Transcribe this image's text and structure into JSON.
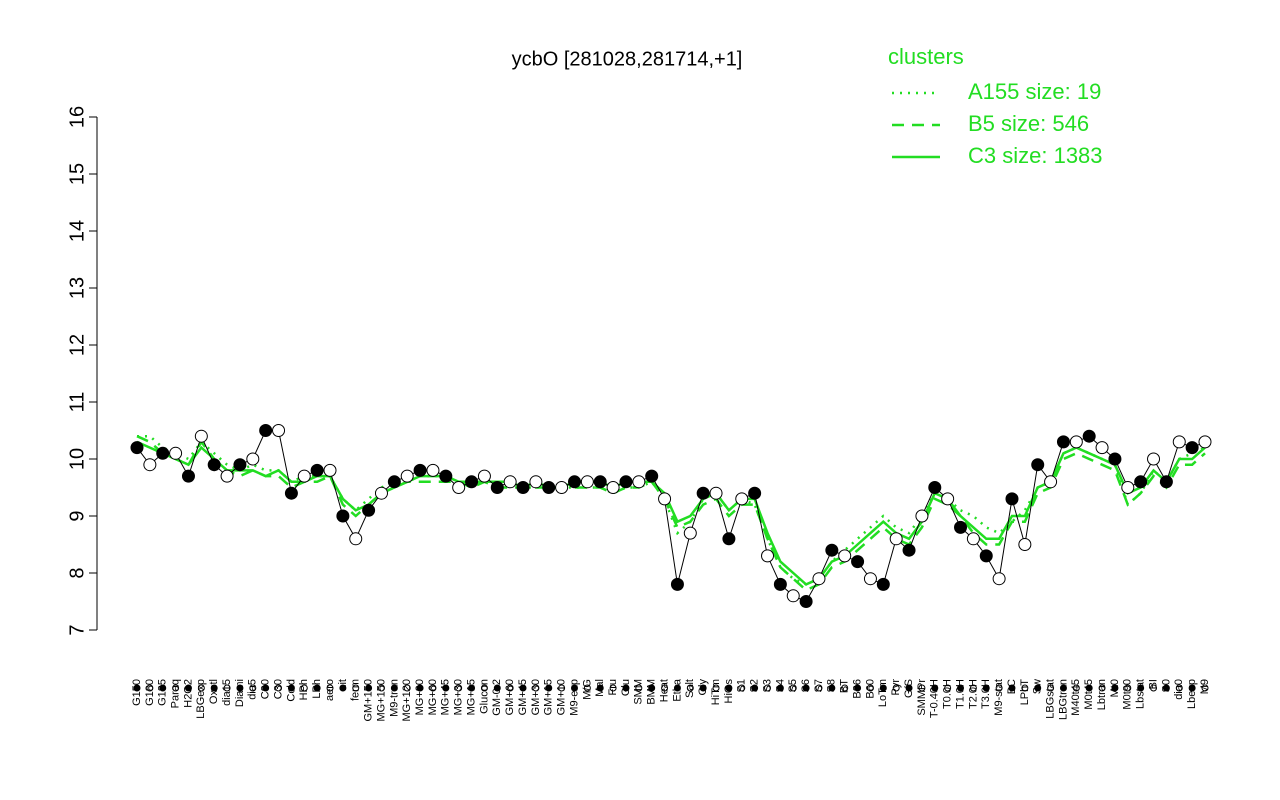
{
  "chart_data": {
    "type": "line",
    "title": "ycbO [281028,281714,+1]",
    "categories": [
      "G150",
      "G180",
      "G135",
      "Paraq",
      "H2O2",
      "LBGexp",
      "Oxctl",
      "dia15",
      "Diami",
      "dia5",
      "C90",
      "C30",
      "Cold",
      "HPh",
      "LPh",
      "aero",
      "nit",
      "ferm",
      "GM+150",
      "MG+150",
      "M9-tran",
      "MG+120",
      "MG+90",
      "MG+60",
      "MG+45",
      "MG+30",
      "MG+15",
      "Glucon",
      "GM-0.2",
      "GM+60",
      "GM+45",
      "GM+30",
      "GM+15",
      "GM+10",
      "M9-exp",
      "M/G",
      "Mal",
      "Fru",
      "Glu",
      "SMM",
      "BMM",
      "Heat",
      "Etha",
      "Salt",
      "Gly",
      "HiTm",
      "HiOs",
      "S1",
      "S2",
      "S3",
      "S4",
      "S5",
      "S6",
      "S7",
      "S8",
      "BT",
      "B36",
      "B60",
      "LoTm",
      "Pyr",
      "G/S",
      "SMMPr",
      "T-0.40H",
      "T0.0H",
      "T1.0H",
      "T2.0H",
      "T3.0H",
      "M9-stat",
      "BC",
      "LPhT",
      "Sw",
      "LBGstat",
      "LBGtran",
      "M40t45",
      "M0t45",
      "Lbtran",
      "Mt0",
      "M0t90",
      "Lbstat",
      "BI",
      "S0",
      "dia0",
      "Lbexp",
      "M9"
    ],
    "values": [
      10.2,
      9.9,
      10.1,
      10.1,
      9.7,
      10.4,
      9.9,
      9.7,
      9.9,
      10.0,
      10.5,
      10.5,
      9.4,
      9.7,
      9.8,
      9.8,
      9.0,
      8.6,
      9.1,
      9.4,
      9.6,
      9.7,
      9.8,
      9.8,
      9.7,
      9.5,
      9.6,
      9.7,
      9.5,
      9.6,
      9.5,
      9.6,
      9.5,
      9.5,
      9.6,
      9.6,
      9.6,
      9.5,
      9.6,
      9.6,
      9.7,
      9.3,
      7.8,
      8.7,
      9.4,
      9.4,
      8.6,
      9.3,
      9.4,
      8.3,
      7.8,
      7.6,
      7.5,
      7.9,
      8.4,
      8.3,
      8.2,
      7.9,
      7.8,
      8.6,
      8.4,
      9.0,
      9.5,
      9.3,
      8.8,
      8.6,
      8.3,
      7.9,
      9.3,
      8.5,
      9.9,
      9.6,
      10.3,
      10.3,
      10.4,
      10.2,
      10.0,
      9.5,
      9.6,
      10.0,
      9.6,
      10.3,
      10.2,
      10.3
    ],
    "color": "#000000",
    "series": [
      {
        "name": "A155 size: 19",
        "color": "#22dd22",
        "linestyle": "dotted",
        "values": [
          10.4,
          10.4,
          10.2,
          10.1,
          10.0,
          10.3,
          10.1,
          9.9,
          9.8,
          9.9,
          9.8,
          9.8,
          9.6,
          9.7,
          9.7,
          9.7,
          9.3,
          9.1,
          9.3,
          9.5,
          9.6,
          9.6,
          9.7,
          9.7,
          9.7,
          9.6,
          9.6,
          9.6,
          9.6,
          9.6,
          9.5,
          9.5,
          9.5,
          9.5,
          9.5,
          9.5,
          9.5,
          9.4,
          9.5,
          9.5,
          9.6,
          9.3,
          8.7,
          8.9,
          9.3,
          9.4,
          9.1,
          9.3,
          9.2,
          8.6,
          8.1,
          7.9,
          7.8,
          7.9,
          8.2,
          8.4,
          8.6,
          8.8,
          9.0,
          8.8,
          8.7,
          9.0,
          9.4,
          9.3,
          9.1,
          9.0,
          8.8,
          8.7,
          8.9,
          9.1,
          9.5,
          9.6,
          10.1,
          10.2,
          10.1,
          10.0,
          9.9,
          9.2,
          9.4,
          9.8,
          9.6,
          10.0,
          10.1,
          10.2
        ]
      },
      {
        "name": "B5 size: 546",
        "color": "#22dd22",
        "linestyle": "dashed",
        "values": [
          10.4,
          10.3,
          10.1,
          10.0,
          9.9,
          10.3,
          10.0,
          9.8,
          9.7,
          9.8,
          9.7,
          9.7,
          9.5,
          9.6,
          9.6,
          9.7,
          9.2,
          9.0,
          9.2,
          9.4,
          9.5,
          9.6,
          9.6,
          9.6,
          9.6,
          9.6,
          9.5,
          9.6,
          9.5,
          9.5,
          9.5,
          9.5,
          9.5,
          9.5,
          9.5,
          9.5,
          9.5,
          9.4,
          9.5,
          9.5,
          9.6,
          9.3,
          8.8,
          8.9,
          9.2,
          9.3,
          9.0,
          9.2,
          9.2,
          8.6,
          8.1,
          7.9,
          7.7,
          7.8,
          8.1,
          8.2,
          8.4,
          8.6,
          8.8,
          8.6,
          8.5,
          8.8,
          9.3,
          9.2,
          9.0,
          8.7,
          8.5,
          8.5,
          8.9,
          8.9,
          9.4,
          9.5,
          10.0,
          10.1,
          10.0,
          9.9,
          9.8,
          9.2,
          9.4,
          9.7,
          9.5,
          9.9,
          9.9,
          10.1
        ]
      },
      {
        "name": "C3 size: 1383",
        "color": "#22dd22",
        "linestyle": "solid",
        "values": [
          10.3,
          10.2,
          10.1,
          10.0,
          9.9,
          10.2,
          10.0,
          9.8,
          9.8,
          9.8,
          9.7,
          9.8,
          9.6,
          9.6,
          9.7,
          9.7,
          9.3,
          9.1,
          9.2,
          9.4,
          9.5,
          9.6,
          9.7,
          9.7,
          9.7,
          9.6,
          9.6,
          9.6,
          9.6,
          9.6,
          9.5,
          9.6,
          9.5,
          9.5,
          9.6,
          9.6,
          9.6,
          9.5,
          9.6,
          9.6,
          9.6,
          9.4,
          8.9,
          9.0,
          9.3,
          9.4,
          9.1,
          9.3,
          9.3,
          8.7,
          8.2,
          8.0,
          7.8,
          7.9,
          8.2,
          8.3,
          8.5,
          8.7,
          8.9,
          8.7,
          8.6,
          8.9,
          9.4,
          9.3,
          9.0,
          8.8,
          8.6,
          8.6,
          9.0,
          9.0,
          9.5,
          9.6,
          10.1,
          10.2,
          10.1,
          10.0,
          9.9,
          9.4,
          9.5,
          9.8,
          9.6,
          10.0,
          10.0,
          10.2
        ]
      }
    ],
    "legend_title": "clusters",
    "legend_position": "top-right",
    "ylim": [
      7,
      16
    ],
    "yticks": [
      7,
      8,
      9,
      10,
      11,
      12,
      13,
      14,
      15,
      16
    ]
  }
}
